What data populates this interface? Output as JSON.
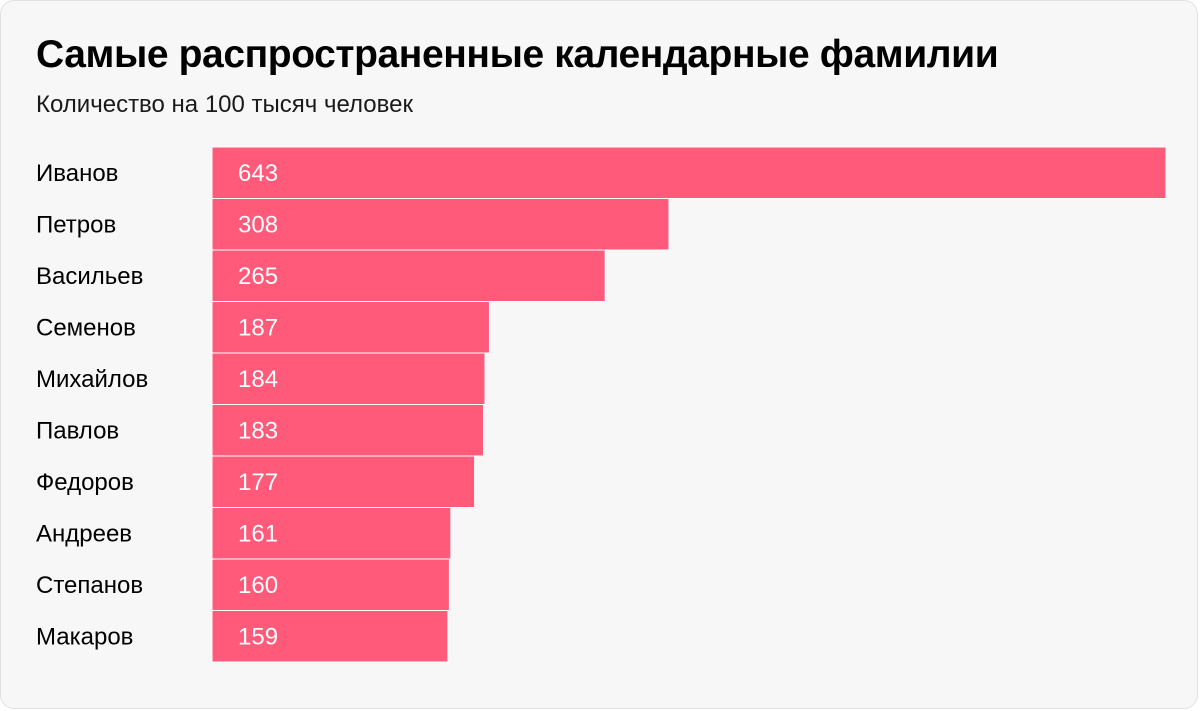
{
  "title": "Самые распространенные календарные фамилии",
  "subtitle": "Количество на 100 тысяч человек",
  "colors": {
    "bar": "#ff5a7a",
    "background": "#f7f7f7",
    "separator": "#ffffff"
  },
  "chart_data": {
    "type": "bar",
    "orientation": "horizontal",
    "title": "Самые распространенные календарные фамилии",
    "subtitle": "Количество на 100 тысяч человек",
    "categories": [
      "Иванов",
      "Петров",
      "Васильев",
      "Семенов",
      "Михайлов",
      "Павлов",
      "Федоров",
      "Андреев",
      "Степанов",
      "Макаров"
    ],
    "values": [
      643,
      308,
      265,
      187,
      184,
      183,
      177,
      161,
      160,
      159
    ],
    "xlim": [
      0,
      643
    ],
    "grid": false,
    "legend": "none"
  }
}
